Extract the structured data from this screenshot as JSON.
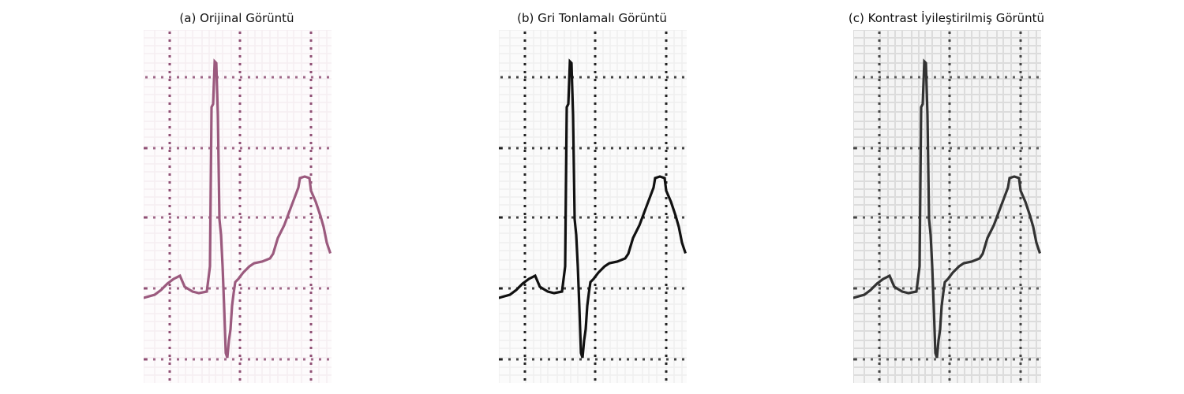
{
  "figure": {
    "panels": [
      {
        "title": "(a) Orijinal Görüntü",
        "colors": {
          "trace": "#9b5a7e",
          "grid_fine": "#f5eef2",
          "grid_major": "#d9b8c8",
          "dots": "#8f4f74",
          "bg": "#fdfbfc"
        }
      },
      {
        "title": "(b) Gri Tonlamalı Görüntü",
        "colors": {
          "trace": "#111111",
          "grid_fine": "#f0f0f0",
          "grid_major": "#dddddd",
          "dots": "#222222",
          "bg": "#fbfbfb"
        }
      },
      {
        "title": "(c) Kontrast İyileştirilmiş Görüntü",
        "colors": {
          "trace": "#333333",
          "grid_fine": "#dcdcdc",
          "grid_major": "#b8b8b8",
          "dots": "#444444",
          "bg": "#f4f4f4"
        }
      }
    ]
  }
}
